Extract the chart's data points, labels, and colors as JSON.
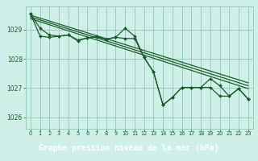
{
  "title": "Graphe pression niveau de la mer (hPa)",
  "bg_color": "#cef0e8",
  "plot_bg_color": "#cef0e8",
  "label_bg_color": "#5a9a6a",
  "grid_color": "#99ccbb",
  "line_color": "#1a5c28",
  "text_color": "#1a5c28",
  "label_text_color": "#003300",
  "xlim": [
    -0.5,
    23.5
  ],
  "ylim": [
    1025.6,
    1029.8
  ],
  "yticks": [
    1026,
    1027,
    1028,
    1029
  ],
  "xticks": [
    0,
    1,
    2,
    3,
    4,
    5,
    6,
    7,
    8,
    9,
    10,
    11,
    12,
    13,
    14,
    15,
    16,
    17,
    18,
    19,
    20,
    21,
    22,
    23
  ],
  "line1": [
    1029.55,
    1029.05,
    1028.82,
    1028.78,
    1028.82,
    1028.65,
    1028.72,
    1028.78,
    1028.68,
    1028.74,
    1029.05,
    1028.78,
    1028.05,
    1027.55,
    1026.42,
    1026.68,
    1027.02,
    1027.02,
    1027.02,
    1027.32,
    1027.08,
    1026.72,
    1026.98,
    1026.62
  ],
  "line2": [
    1029.55,
    1028.78,
    1028.74,
    1028.78,
    1028.82,
    1028.62,
    1028.72,
    1028.75,
    1028.68,
    1028.74,
    1028.7,
    1028.7,
    1028.05,
    1027.55,
    1026.42,
    1026.68,
    1027.02,
    1027.02,
    1027.02,
    1027.02,
    1026.72,
    1026.72,
    1026.98,
    1026.62
  ],
  "diag_lines": [
    [
      1029.5,
      1027.18
    ],
    [
      1029.44,
      1027.08
    ],
    [
      1029.38,
      1026.98
    ]
  ]
}
